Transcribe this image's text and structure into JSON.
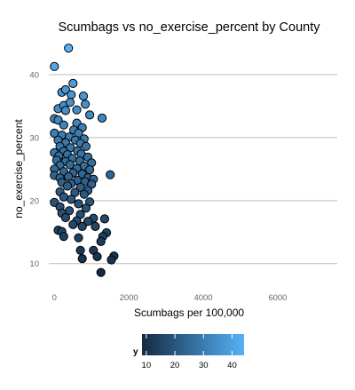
{
  "chart_data": {
    "type": "scatter",
    "title": "Scumbags vs  no_exercise_percent by County",
    "xlabel": "Scumbags per 100,000",
    "ylabel": "no_exercise_percent",
    "xlim": [
      -150,
      7600
    ],
    "ylim": [
      7,
      45.5
    ],
    "x_ticks": [
      0,
      2000,
      4000,
      6000
    ],
    "x_tick_labels": [
      "0",
      "2000",
      "4000",
      "6000"
    ],
    "y_ticks": [
      10,
      20,
      30,
      40
    ],
    "y_tick_labels": [
      "10",
      "20",
      "30",
      "40"
    ],
    "grid": "horizontal",
    "legend": {
      "title": "y",
      "position": "bottom",
      "labels": [
        "10",
        "20",
        "30",
        "40"
      ],
      "values": [
        10,
        20,
        30,
        40
      ],
      "range": [
        8.5,
        44.2
      ],
      "low_color": "#132B43",
      "high_color": "#56B1F7"
    },
    "points": [
      [
        380,
        44.2
      ],
      [
        0,
        41.3
      ],
      [
        500,
        38.6
      ],
      [
        200,
        37.2
      ],
      [
        300,
        37.6
      ],
      [
        450,
        36.8
      ],
      [
        780,
        36.6
      ],
      [
        830,
        35.3
      ],
      [
        100,
        34.6
      ],
      [
        250,
        35.1
      ],
      [
        420,
        35.6
      ],
      [
        600,
        34.4
      ],
      [
        300,
        34.3
      ],
      [
        950,
        33.6
      ],
      [
        1280,
        33.1
      ],
      [
        0,
        33.0
      ],
      [
        100,
        32.8
      ],
      [
        250,
        32.0
      ],
      [
        600,
        32.3
      ],
      [
        750,
        31.6
      ],
      [
        520,
        31.2
      ],
      [
        650,
        30.7
      ],
      [
        0,
        30.7
      ],
      [
        200,
        30.4
      ],
      [
        400,
        30.1
      ],
      [
        800,
        29.8
      ],
      [
        100,
        29.6
      ],
      [
        300,
        29.2
      ],
      [
        560,
        29.6
      ],
      [
        700,
        29.1
      ],
      [
        150,
        28.6
      ],
      [
        430,
        28.4
      ],
      [
        850,
        28.6
      ],
      [
        250,
        27.8
      ],
      [
        620,
        27.9
      ],
      [
        0,
        27.6
      ],
      [
        120,
        27.1
      ],
      [
        350,
        27.3
      ],
      [
        720,
        27.4
      ],
      [
        480,
        26.7
      ],
      [
        900,
        26.9
      ],
      [
        60,
        26.4
      ],
      [
        300,
        26.2
      ],
      [
        680,
        26.3
      ],
      [
        1000,
        26.0
      ],
      [
        150,
        25.6
      ],
      [
        420,
        25.7
      ],
      [
        800,
        25.5
      ],
      [
        0,
        25.0
      ],
      [
        600,
        25.1
      ],
      [
        950,
        24.9
      ],
      [
        250,
        24.6
      ],
      [
        500,
        24.4
      ],
      [
        750,
        24.2
      ],
      [
        1500,
        24.1
      ],
      [
        0,
        24.0
      ],
      [
        150,
        23.6
      ],
      [
        380,
        23.8
      ],
      [
        900,
        23.6
      ],
      [
        1050,
        23.4
      ],
      [
        620,
        23.2
      ],
      [
        820,
        23.0
      ],
      [
        200,
        22.9
      ],
      [
        450,
        22.7
      ],
      [
        1000,
        22.6
      ],
      [
        350,
        22.3
      ],
      [
        700,
        22.1
      ],
      [
        900,
        21.6
      ],
      [
        150,
        21.4
      ],
      [
        550,
        21.3
      ],
      [
        800,
        21.0
      ],
      [
        250,
        20.6
      ],
      [
        450,
        20.2
      ],
      [
        950,
        19.8
      ],
      [
        0,
        19.7
      ],
      [
        650,
        19.5
      ],
      [
        150,
        19.0
      ],
      [
        850,
        18.8
      ],
      [
        400,
        18.4
      ],
      [
        200,
        18.0
      ],
      [
        700,
        17.8
      ],
      [
        1050,
        17.2
      ],
      [
        300,
        17.3
      ],
      [
        600,
        16.8
      ],
      [
        900,
        16.7
      ],
      [
        1350,
        17.1
      ],
      [
        500,
        16.2
      ],
      [
        1100,
        15.9
      ],
      [
        750,
        15.9
      ],
      [
        100,
        15.3
      ],
      [
        200,
        15.1
      ],
      [
        1400,
        14.9
      ],
      [
        1300,
        14.3
      ],
      [
        650,
        14.1
      ],
      [
        250,
        14.3
      ],
      [
        1250,
        13.5
      ],
      [
        1050,
        12.1
      ],
      [
        700,
        12.1
      ],
      [
        1600,
        11.2
      ],
      [
        1150,
        11.1
      ],
      [
        1530,
        10.6
      ],
      [
        750,
        10.8
      ],
      [
        1250,
        8.6
      ]
    ]
  }
}
